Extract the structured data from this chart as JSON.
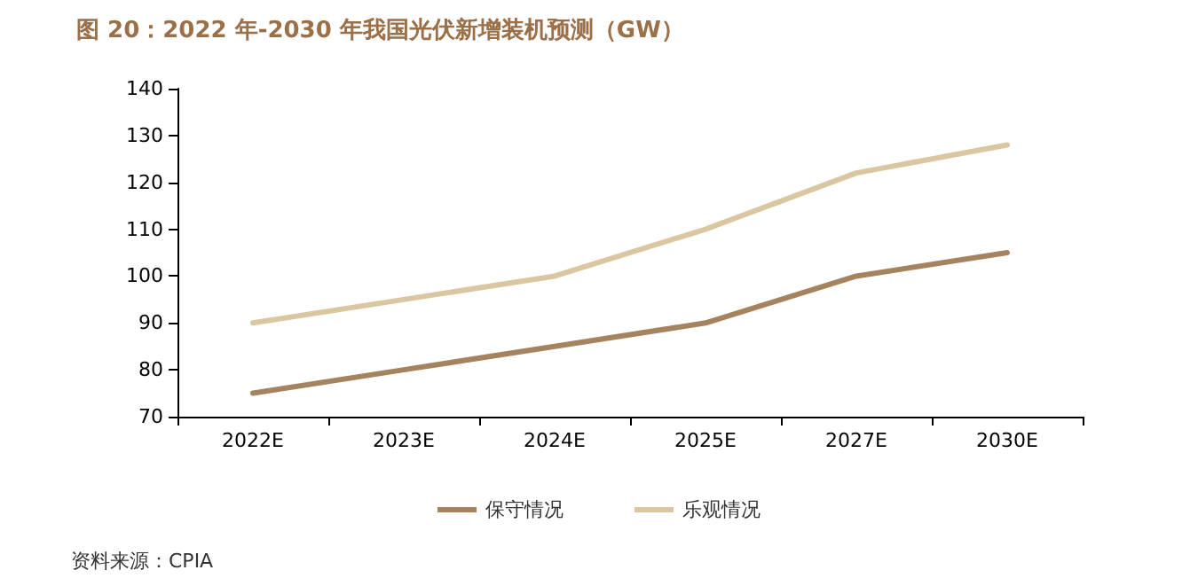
{
  "chart_data": {
    "type": "line",
    "title": "图 20：2022 年-2030 年我国光伏新增装机预测（GW）",
    "categories": [
      "2022E",
      "2023E",
      "2024E",
      "2025E",
      "2027E",
      "2030E"
    ],
    "series": [
      {
        "name": "保守情况",
        "color": "#a6835f",
        "values": [
          75,
          80,
          85,
          90,
          100,
          105
        ]
      },
      {
        "name": "乐观情况",
        "color": "#dac7a2",
        "values": [
          90,
          95,
          100,
          110,
          122,
          128
        ]
      }
    ],
    "ylim": [
      70,
      140
    ],
    "yticks": [
      70,
      80,
      90,
      100,
      110,
      120,
      130,
      140
    ],
    "grid": false,
    "legend": "bottom",
    "marker": "none",
    "line_style": "solid",
    "annotations": [
      "资料来源：CPIA"
    ]
  }
}
